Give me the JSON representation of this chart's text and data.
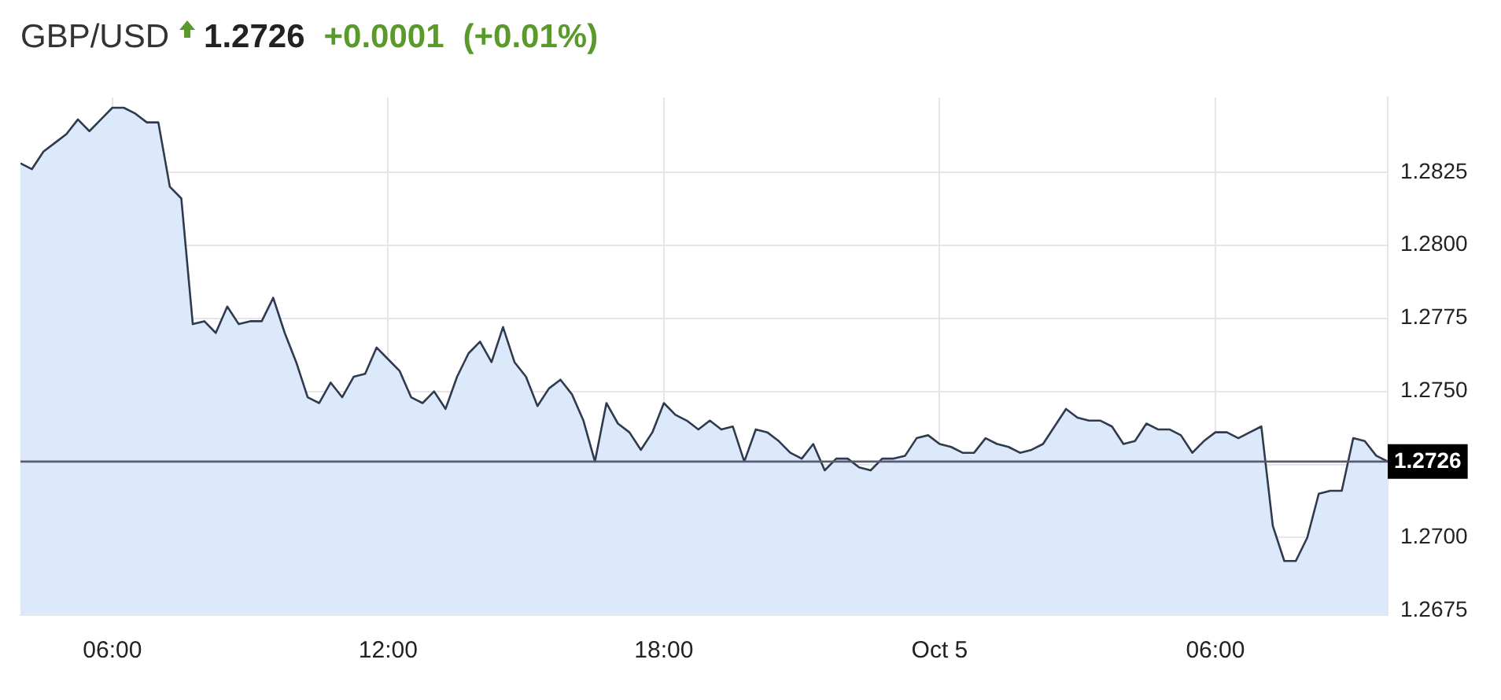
{
  "chart_data": {
    "type": "area",
    "title": "GBP/USD",
    "annotations": [
      "1.2726",
      "+0.0001",
      "(+0.01%)"
    ],
    "x": [
      "--10-04T04:00",
      "--10-04T04:15",
      "--10-04T04:30",
      "--10-04T04:45",
      "--10-04T05:00",
      "--10-04T05:15",
      "--10-04T05:30",
      "--10-04T05:45",
      "--10-04T06:00",
      "--10-04T06:15",
      "--10-04T06:30",
      "--10-04T06:45",
      "--10-04T07:00",
      "--10-04T07:15",
      "--10-04T07:30",
      "--10-04T07:45",
      "--10-04T08:00",
      "--10-04T08:15",
      "--10-04T08:30",
      "--10-04T08:45",
      "--10-04T09:00",
      "--10-04T09:15",
      "--10-04T09:30",
      "--10-04T09:45",
      "--10-04T10:00",
      "--10-04T10:15",
      "--10-04T10:30",
      "--10-04T10:45",
      "--10-04T11:00",
      "--10-04T11:15",
      "--10-04T11:30",
      "--10-04T11:45",
      "--10-04T12:00",
      "--10-04T12:15",
      "--10-04T12:30",
      "--10-04T12:45",
      "--10-04T13:00",
      "--10-04T13:15",
      "--10-04T13:30",
      "--10-04T13:45",
      "--10-04T14:00",
      "--10-04T14:15",
      "--10-04T14:30",
      "--10-04T14:45",
      "--10-04T15:00",
      "--10-04T15:15",
      "--10-04T15:30",
      "--10-04T15:45",
      "--10-04T16:00",
      "--10-04T16:15",
      "--10-04T16:30",
      "--10-04T16:45",
      "--10-04T17:00",
      "--10-04T17:15",
      "--10-04T17:30",
      "--10-04T17:45",
      "--10-04T18:00",
      "--10-04T18:15",
      "--10-04T18:30",
      "--10-04T18:45",
      "--10-04T19:00",
      "--10-04T19:15",
      "--10-04T19:30",
      "--10-04T19:45",
      "--10-04T20:00",
      "--10-04T20:15",
      "--10-04T20:30",
      "--10-04T20:45",
      "--10-04T21:00",
      "--10-04T21:15",
      "--10-04T21:30",
      "--10-04T21:45",
      "--10-04T22:00",
      "--10-04T22:15",
      "--10-04T22:30",
      "--10-04T22:45",
      "--10-04T23:00",
      "--10-04T23:15",
      "--10-04T23:30",
      "--10-04T23:45",
      "--10-05T00:00",
      "--10-05T00:15",
      "--10-05T00:30",
      "--10-05T00:45",
      "--10-05T01:00",
      "--10-05T01:15",
      "--10-05T01:30",
      "--10-05T01:45",
      "--10-05T02:00",
      "--10-05T02:15",
      "--10-05T02:30",
      "--10-05T02:45",
      "--10-05T03:00",
      "--10-05T03:15",
      "--10-05T03:30",
      "--10-05T03:45",
      "--10-05T04:00",
      "--10-05T04:15",
      "--10-05T04:30",
      "--10-05T04:45",
      "--10-05T05:00",
      "--10-05T05:15",
      "--10-05T05:30",
      "--10-05T05:45",
      "--10-05T06:00",
      "--10-05T06:15",
      "--10-05T06:30",
      "--10-05T06:45",
      "--10-05T07:00",
      "--10-05T07:15",
      "--10-05T07:30",
      "--10-05T07:45",
      "--10-05T08:00",
      "--10-05T08:15",
      "--10-05T08:30",
      "--10-05T08:45",
      "--10-05T09:00",
      "--10-05T09:15",
      "--10-05T09:30",
      "--10-05T09:45"
    ],
    "series": [
      {
        "color": "#2f3a4f",
        "values": [
          1.2828,
          1.2826,
          1.2832,
          1.2835,
          1.2838,
          1.2843,
          1.2839,
          1.2843,
          1.2847,
          1.2847,
          1.2845,
          1.2842,
          1.2842,
          1.282,
          1.2816,
          1.2773,
          1.2774,
          1.277,
          1.2779,
          1.2773,
          1.2774,
          1.2774,
          1.2782,
          1.277,
          1.276,
          1.2748,
          1.2746,
          1.2753,
          1.2748,
          1.2755,
          1.2756,
          1.2765,
          1.2761,
          1.2757,
          1.2748,
          1.2746,
          1.275,
          1.2744,
          1.2755,
          1.2763,
          1.2767,
          1.276,
          1.2772,
          1.276,
          1.2755,
          1.2745,
          1.2751,
          1.2754,
          1.2749,
          1.274,
          1.2726,
          1.2746,
          1.2739,
          1.2736,
          1.273,
          1.2736,
          1.2746,
          1.2742,
          1.274,
          1.2737,
          1.274,
          1.2737,
          1.2738,
          1.2726,
          1.2737,
          1.2736,
          1.2733,
          1.2729,
          1.2727,
          1.2732,
          1.2723,
          1.2727,
          1.2727,
          1.2724,
          1.2723,
          1.2727,
          1.2727,
          1.2728,
          1.2734,
          1.2735,
          1.2732,
          1.2731,
          1.2729,
          1.2729,
          1.2734,
          1.2732,
          1.2731,
          1.2729,
          1.273,
          1.2732,
          1.2738,
          1.2744,
          1.2741,
          1.274,
          1.274,
          1.2738,
          1.2732,
          1.2733,
          1.2739,
          1.2737,
          1.2737,
          1.2735,
          1.2729,
          1.2733,
          1.2736,
          1.2736,
          1.2734,
          1.2736,
          1.2738,
          1.2704,
          1.2692,
          1.2692,
          1.27,
          1.2715,
          1.2716,
          1.2716,
          1.2734,
          1.2733,
          1.2728,
          1.2726
        ]
      }
    ],
    "xlim": [
      "--10-04T04:00",
      "--10-05T09:45"
    ],
    "xticks": [
      {
        "value": "--10-04T06:00",
        "label": "06:00"
      },
      {
        "value": "--10-04T12:00",
        "label": "12:00"
      },
      {
        "value": "--10-04T18:00",
        "label": "18:00"
      },
      {
        "value": "--10-05T00:00",
        "label": "Oct 5"
      },
      {
        "value": "--10-05T06:00",
        "label": "06:00"
      }
    ],
    "ylim": [
      1.26735,
      1.28505
    ],
    "yticks": [
      1.2675,
      {
        "value": 1.27,
        "label": "1.2700"
      },
      {
        "value": 1.2725,
        "label": null
      },
      {
        "value": 1.275,
        "label": "1.2750"
      },
      1.2775,
      {
        "value": 1.28,
        "label": "1.2800"
      },
      1.2825
    ],
    "ref_lines": [
      {
        "axis": "y",
        "value": 1.2726,
        "label": "1.2726",
        "color": "#5a5a72"
      }
    ],
    "grid": true,
    "legend": false
  }
}
